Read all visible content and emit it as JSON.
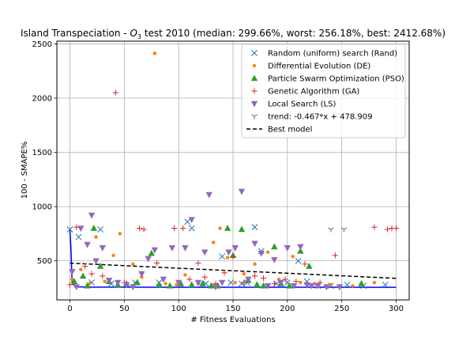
{
  "chart_data": {
    "type": "scatter",
    "title": "Island Transpeciation - O3 test 2010 (median: 299.66%, worst: 256.18%, best: 2412.68%)",
    "title_parts": {
      "prefix": "Island Transpeciation - ",
      "var": "O",
      "sub": "3",
      "suffix": " test 2010 (median: 299.66%, worst: 256.18%, best: 2412.68%)"
    },
    "xlabel": "# Fitness Evaluations",
    "ylabel": "100 - SMAPE%",
    "xlim": [
      -12,
      312
    ],
    "ylim": [
      140,
      2525
    ],
    "xticks": [
      0,
      50,
      100,
      150,
      200,
      250,
      300
    ],
    "yticks": [
      500,
      1000,
      1500,
      2000,
      2500
    ],
    "grid": true,
    "legend_position": "top-right",
    "series": [
      {
        "name": "Random (uniform) search (Rand)",
        "marker": "x",
        "color": "#1f77b4",
        "x": [
          0,
          8,
          20,
          28,
          38,
          60,
          82,
          108,
          112,
          125,
          140,
          148,
          158,
          163,
          170,
          176,
          190,
          200,
          210,
          218,
          228,
          240,
          255,
          270,
          290
        ],
        "y": [
          790,
          720,
          300,
          790,
          290,
          300,
          300,
          860,
          800,
          290,
          540,
          300,
          290,
          300,
          810,
          590,
          290,
          300,
          500,
          310,
          270,
          270,
          280,
          270,
          280
        ]
      },
      {
        "name": "Differential Evolution (DE)",
        "marker": "o",
        "color": "#ff7f0e",
        "x": [
          2,
          10,
          18,
          24,
          32,
          40,
          46,
          58,
          66,
          78,
          88,
          98,
          106,
          118,
          132,
          138,
          145,
          152,
          160,
          170,
          182,
          192,
          205,
          212,
          225,
          240,
          260,
          280
        ],
        "y": [
          330,
          420,
          290,
          720,
          310,
          550,
          750,
          470,
          350,
          2412,
          290,
          280,
          370,
          290,
          670,
          800,
          530,
          300,
          380,
          470,
          580,
          330,
          540,
          300,
          290,
          280,
          270,
          300
        ]
      },
      {
        "name": "Particle Swarm Optimization (PSO)",
        "marker": "^",
        "color": "#2ca02c",
        "x": [
          4,
          12,
          16,
          22,
          28,
          36,
          44,
          52,
          62,
          75,
          82,
          92,
          102,
          112,
          122,
          130,
          136,
          145,
          150,
          158,
          164,
          172,
          178,
          188,
          194,
          202,
          212,
          220,
          268
        ],
        "y": [
          310,
          360,
          270,
          800,
          450,
          310,
          280,
          290,
          300,
          570,
          280,
          270,
          290,
          280,
          290,
          270,
          270,
          800,
          550,
          790,
          320,
          280,
          270,
          630,
          290,
          270,
          590,
          450,
          290
        ]
      },
      {
        "name": "Genetic Algorithm (GA)",
        "marker": "+",
        "color": "#d62728",
        "x": [
          0,
          6,
          14,
          20,
          30,
          42,
          50,
          64,
          68,
          80,
          96,
          104,
          110,
          118,
          124,
          134,
          142,
          150,
          160,
          170,
          178,
          188,
          198,
          208,
          216,
          230,
          244,
          280,
          292,
          296,
          300
        ],
        "y": [
          280,
          810,
          450,
          380,
          360,
          2050,
          300,
          800,
          790,
          480,
          800,
          800,
          330,
          480,
          350,
          290,
          390,
          540,
          300,
          360,
          340,
          290,
          330,
          310,
          470,
          300,
          550,
          810,
          790,
          800,
          800
        ]
      },
      {
        "name": "Local Search (LS)",
        "marker": "v",
        "color": "#9467bd",
        "x": [
          2,
          6,
          10,
          16,
          20,
          24,
          30,
          36,
          44,
          52,
          58,
          66,
          72,
          78,
          86,
          94,
          100,
          106,
          112,
          118,
          124,
          128,
          134,
          140,
          146,
          152,
          158,
          164,
          170,
          176,
          182,
          188,
          194,
          200,
          206,
          212,
          218,
          222,
          228,
          236,
          248
        ],
        "y": [
          400,
          260,
          800,
          650,
          920,
          500,
          620,
          320,
          300,
          280,
          260,
          380,
          520,
          600,
          330,
          620,
          300,
          620,
          880,
          300,
          580,
          1110,
          260,
          300,
          580,
          620,
          1140,
          330,
          660,
          570,
          270,
          510,
          300,
          620,
          270,
          630,
          280,
          270,
          270,
          260,
          260
        ]
      },
      {
        "name": "trend: -0.467*x + 478.909",
        "marker": "1",
        "color": "#8c564b",
        "x": [
          240,
          252
        ],
        "y": [
          790,
          790
        ]
      }
    ],
    "lines": [
      {
        "name": "Best model",
        "style": "dashed",
        "color": "#000000",
        "x": [
          0,
          300
        ],
        "y": [
          478.909,
          338.8
        ]
      },
      {
        "name": "",
        "style": "solid",
        "color": "#0000ff",
        "x": [
          0,
          1,
          2,
          4,
          6,
          20,
          60,
          80,
          100,
          130,
          160,
          200,
          250,
          300
        ],
        "y": [
          790,
          600,
          300,
          270,
          260,
          258,
          258,
          257,
          257,
          257,
          257,
          256.5,
          256.3,
          256.18
        ]
      }
    ]
  }
}
